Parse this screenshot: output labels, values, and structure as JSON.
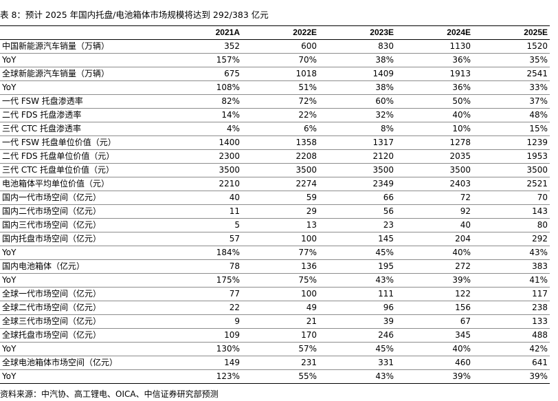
{
  "title": "表 8：预计 2025 年国内托盘/电池箱体市场规模将达到 292/383 亿元",
  "table": {
    "columns": [
      "",
      "2021A",
      "2022E",
      "2023E",
      "2024E",
      "2025E"
    ],
    "rows": [
      [
        "中国新能源汽车销量（万辆）",
        "352",
        "600",
        "830",
        "1130",
        "1520"
      ],
      [
        "YoY",
        "157%",
        "70%",
        "38%",
        "36%",
        "35%"
      ],
      [
        "全球新能源汽车销量（万辆）",
        "675",
        "1018",
        "1409",
        "1913",
        "2541"
      ],
      [
        "YoY",
        "108%",
        "51%",
        "38%",
        "36%",
        "33%"
      ],
      [
        "一代 FSW 托盘渗透率",
        "82%",
        "72%",
        "60%",
        "50%",
        "37%"
      ],
      [
        "二代 FDS 托盘渗透率",
        "14%",
        "22%",
        "32%",
        "40%",
        "48%"
      ],
      [
        "三代 CTC 托盘渗透率",
        "4%",
        "6%",
        "8%",
        "10%",
        "15%"
      ],
      [
        "一代 FSW 托盘单位价值（元）",
        "1400",
        "1358",
        "1317",
        "1278",
        "1239"
      ],
      [
        "二代 FDS 托盘单位价值（元）",
        "2300",
        "2208",
        "2120",
        "2035",
        "1953"
      ],
      [
        "三代 CTC 托盘单位价值（元）",
        "3500",
        "3500",
        "3500",
        "3500",
        "3500"
      ],
      [
        "电池箱体平均单位价值（元）",
        "2210",
        "2274",
        "2349",
        "2403",
        "2521"
      ],
      [
        "国内一代市场空间（亿元）",
        "40",
        "59",
        "66",
        "72",
        "70"
      ],
      [
        "国内二代市场空间（亿元）",
        "11",
        "29",
        "56",
        "92",
        "143"
      ],
      [
        "国内三代市场空间（亿元）",
        "5",
        "13",
        "23",
        "40",
        "80"
      ],
      [
        "国内托盘市场空间（亿元）",
        "57",
        "100",
        "145",
        "204",
        "292"
      ],
      [
        "YoY",
        "184%",
        "77%",
        "45%",
        "40%",
        "43%"
      ],
      [
        "国内电池箱体（亿元）",
        "78",
        "136",
        "195",
        "272",
        "383"
      ],
      [
        "YoY",
        "175%",
        "75%",
        "43%",
        "39%",
        "41%"
      ],
      [
        "全球一代市场空间（亿元）",
        "77",
        "100",
        "111",
        "122",
        "117"
      ],
      [
        "全球二代市场空间（亿元）",
        "22",
        "49",
        "96",
        "156",
        "238"
      ],
      [
        "全球三代市场空间（亿元）",
        "9",
        "21",
        "39",
        "67",
        "133"
      ],
      [
        "全球托盘市场空间（亿元）",
        "109",
        "170",
        "246",
        "345",
        "488"
      ],
      [
        "YoY",
        "130%",
        "57%",
        "45%",
        "40%",
        "42%"
      ],
      [
        "全球电池箱体市场空间（亿元）",
        "149",
        "231",
        "331",
        "460",
        "641"
      ],
      [
        "YoY",
        "123%",
        "55%",
        "43%",
        "39%",
        "39%"
      ]
    ]
  },
  "source": "资料来源：中汽协、高工锂电、OICA、中信证券研究部预测"
}
